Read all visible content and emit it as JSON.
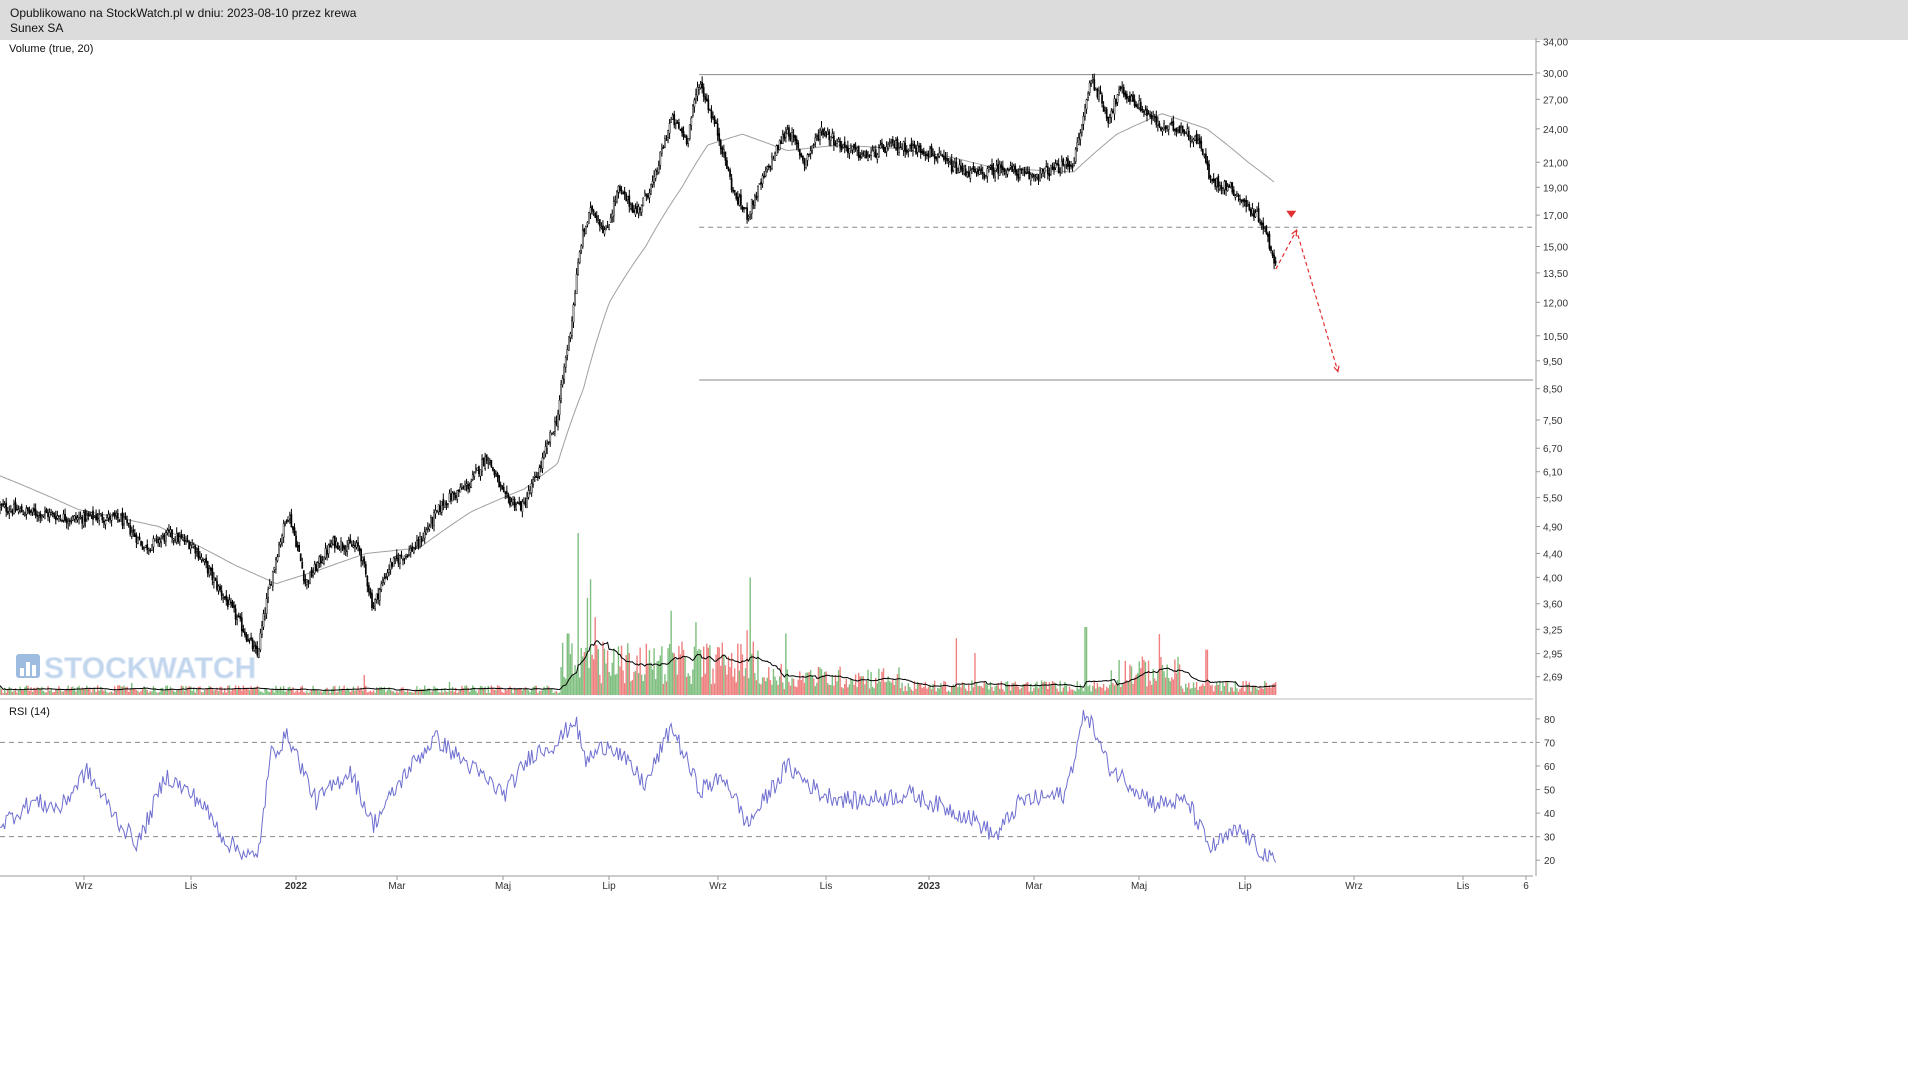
{
  "header": {
    "line1": "Opublikowano na StockWatch.pl w dniu: 2023-08-10 przez krewa",
    "line2": "Sunex SA"
  },
  "watermark": "STOCKWATCH",
  "colors": {
    "candle": "#000000",
    "ma": "#a0a0a0",
    "vol_up": "#7fbf7f",
    "vol_down": "#ef8080",
    "vol_ma": "#000000",
    "rsi": "#6f6fd0",
    "annotation": "#e03030",
    "grid_line": "#999999"
  },
  "chart_data": [
    {
      "type": "candlestick",
      "panel": "price",
      "scale": "log",
      "title": "",
      "legend": "Volume (true, 20)",
      "ylim": [
        2.5,
        34.5
      ],
      "y_ticks": [
        "34,00",
        "30,00",
        "27,00",
        "24,00",
        "21,00",
        "19,00",
        "17,00",
        "15,00",
        "13,50",
        "12,00",
        "10,50",
        "9,50",
        "8,50",
        "7,50",
        "6,70",
        "6,10",
        "5,50",
        "4,90",
        "4,40",
        "4,00",
        "3,60",
        "3,25",
        "2,95",
        "2,69"
      ],
      "x_ticks": [
        "Wrz",
        "Lis",
        "2022",
        "Mar",
        "Maj",
        "Lip",
        "Wrz",
        "Lis",
        "2023",
        "Mar",
        "Maj",
        "Lip",
        "Wrz",
        "Lis",
        "6"
      ],
      "x_range": [
        "2021-08-01",
        "2024-01-06"
      ],
      "close_path": [
        [
          "2021-08-01",
          5.3
        ],
        [
          "2021-08-15",
          5.2
        ],
        [
          "2021-08-29",
          5.15
        ],
        [
          "2021-09-12",
          5.05
        ],
        [
          "2021-09-26",
          5.1
        ],
        [
          "2021-10-10",
          5.05
        ],
        [
          "2021-10-24",
          4.5
        ],
        [
          "2021-11-07",
          4.75
        ],
        [
          "2021-11-21",
          4.55
        ],
        [
          "2021-12-05",
          3.85
        ],
        [
          "2021-12-15",
          3.45
        ],
        [
          "2021-12-28",
          2.92
        ],
        [
          "2022-01-03",
          3.7
        ],
        [
          "2022-01-10",
          4.6
        ],
        [
          "2022-01-15",
          5.2
        ],
        [
          "2022-01-25",
          3.9
        ],
        [
          "2022-02-10",
          4.6
        ],
        [
          "2022-02-25",
          4.5
        ],
        [
          "2022-03-05",
          3.55
        ],
        [
          "2022-03-15",
          4.2
        ],
        [
          "2022-03-31",
          4.55
        ],
        [
          "2022-04-15",
          5.4
        ],
        [
          "2022-04-30",
          5.8
        ],
        [
          "2022-05-10",
          6.5
        ],
        [
          "2022-05-20",
          5.5
        ],
        [
          "2022-05-31",
          5.3
        ],
        [
          "2022-06-10",
          6.2
        ],
        [
          "2022-06-20",
          7.6
        ],
        [
          "2022-06-28",
          11.0
        ],
        [
          "2022-07-04",
          15.5
        ],
        [
          "2022-07-10",
          17.5
        ],
        [
          "2022-07-18",
          15.8
        ],
        [
          "2022-07-25",
          18.8
        ],
        [
          "2022-08-05",
          17.2
        ],
        [
          "2022-08-15",
          19.5
        ],
        [
          "2022-08-25",
          25.0
        ],
        [
          "2022-09-03",
          23.0
        ],
        [
          "2022-09-10",
          29.0
        ],
        [
          "2022-09-20",
          24.0
        ],
        [
          "2022-09-30",
          18.5
        ],
        [
          "2022-10-08",
          17.0
        ],
        [
          "2022-10-20",
          20.5
        ],
        [
          "2022-10-31",
          24.0
        ],
        [
          "2022-11-10",
          21.0
        ],
        [
          "2022-11-20",
          24.0
        ],
        [
          "2022-12-01",
          22.5
        ],
        [
          "2022-12-15",
          21.5
        ],
        [
          "2023-01-01",
          22.5
        ],
        [
          "2023-01-20",
          22.0
        ],
        [
          "2023-02-05",
          20.5
        ],
        [
          "2023-02-20",
          20.0
        ],
        [
          "2023-03-05",
          20.6
        ],
        [
          "2023-03-20",
          19.8
        ],
        [
          "2023-04-05",
          20.5
        ],
        [
          "2023-04-15",
          21.0
        ],
        [
          "2023-04-20",
          24.5
        ],
        [
          "2023-04-25",
          29.5
        ],
        [
          "2023-05-05",
          25.0
        ],
        [
          "2023-05-12",
          28.0
        ],
        [
          "2023-05-25",
          26.0
        ],
        [
          "2023-06-05",
          24.0
        ],
        [
          "2023-06-15",
          24.2
        ],
        [
          "2023-06-28",
          22.5
        ],
        [
          "2023-07-03",
          19.5
        ],
        [
          "2023-07-15",
          19.0
        ],
        [
          "2023-07-25",
          17.5
        ],
        [
          "2023-08-01",
          16.8
        ],
        [
          "2023-08-10",
          14.0
        ]
      ],
      "ma_path": [
        [
          "2021-08-01",
          6.0
        ],
        [
          "2021-09-15",
          5.25
        ],
        [
          "2021-11-01",
          4.9
        ],
        [
          "2021-12-15",
          4.2
        ],
        [
          "2022-01-08",
          3.9
        ],
        [
          "2022-01-31",
          4.1
        ],
        [
          "2022-03-01",
          4.4
        ],
        [
          "2022-04-01",
          4.5
        ],
        [
          "2022-05-01",
          5.2
        ],
        [
          "2022-06-01",
          5.7
        ],
        [
          "2022-06-20",
          6.3
        ],
        [
          "2022-07-05",
          8.5
        ],
        [
          "2022-07-20",
          12.0
        ],
        [
          "2022-08-10",
          15.0
        ],
        [
          "2022-08-31",
          19.0
        ],
        [
          "2022-09-15",
          22.5
        ],
        [
          "2022-10-05",
          23.5
        ],
        [
          "2022-10-31",
          22.0
        ],
        [
          "2022-11-30",
          22.5
        ],
        [
          "2023-01-01",
          22.2
        ],
        [
          "2023-02-01",
          21.5
        ],
        [
          "2023-03-01",
          20.5
        ],
        [
          "2023-04-15",
          20.2
        ],
        [
          "2023-05-10",
          23.5
        ],
        [
          "2023-06-05",
          25.5
        ],
        [
          "2023-07-01",
          24.0
        ],
        [
          "2023-07-25",
          21.0
        ],
        [
          "2023-08-10",
          19.3
        ]
      ],
      "levels": [
        {
          "kind": "solid",
          "value": 29.8,
          "from": "2022-09-10",
          "to": "2024-01-06"
        },
        {
          "kind": "dashed",
          "value": 16.2,
          "from": "2022-09-10",
          "to": "2024-01-06"
        },
        {
          "kind": "solid",
          "value": 8.8,
          "from": "2022-09-10",
          "to": "2024-01-06"
        }
      ],
      "projection": [
        [
          "2023-08-10",
          13.7
        ],
        [
          "2023-08-22",
          16.0
        ],
        [
          "2023-09-15",
          9.1
        ]
      ],
      "marker": {
        "date": "2023-08-19",
        "value": 17.1
      }
    },
    {
      "type": "bar",
      "panel": "volume",
      "title": "",
      "spikes": [
        [
          "2022-07-02",
          100
        ],
        [
          "2022-07-07",
          60
        ],
        [
          "2022-07-12",
          48
        ],
        [
          "2022-06-26",
          38
        ],
        [
          "2022-08-25",
          52
        ],
        [
          "2022-09-08",
          45
        ],
        [
          "2022-10-08",
          40
        ],
        [
          "2022-10-30",
          38
        ],
        [
          "2023-02-06",
          35
        ],
        [
          "2023-04-22",
          42
        ],
        [
          "2023-07-01",
          28
        ]
      ]
    },
    {
      "type": "line",
      "panel": "rsi",
      "legend": "RSI (14)",
      "ylim": [
        15,
        88
      ],
      "y_ticks": [
        80,
        70,
        60,
        50,
        40,
        30,
        20
      ],
      "levels": [
        70,
        30
      ],
      "values_path": [
        [
          "2021-08-01",
          35
        ],
        [
          "2021-08-20",
          45
        ],
        [
          "2021-09-05",
          42
        ],
        [
          "2021-09-20",
          58
        ],
        [
          "2021-10-10",
          35
        ],
        [
          "2021-10-20",
          27
        ],
        [
          "2021-11-05",
          56
        ],
        [
          "2021-11-25",
          45
        ],
        [
          "2021-12-10",
          28
        ],
        [
          "2021-12-28",
          20
        ],
        [
          "2022-01-05",
          65
        ],
        [
          "2022-01-15",
          73
        ],
        [
          "2022-01-31",
          45
        ],
        [
          "2022-02-20",
          58
        ],
        [
          "2022-03-05",
          35
        ],
        [
          "2022-03-25",
          58
        ],
        [
          "2022-04-10",
          72
        ],
        [
          "2022-04-30",
          60
        ],
        [
          "2022-05-20",
          48
        ],
        [
          "2022-06-05",
          65
        ],
        [
          "2022-06-20",
          70
        ],
        [
          "2022-06-30",
          80
        ],
        [
          "2022-07-06",
          62
        ],
        [
          "2022-07-20",
          70
        ],
        [
          "2022-08-10",
          52
        ],
        [
          "2022-08-25",
          77
        ],
        [
          "2022-09-10",
          50
        ],
        [
          "2022-09-25",
          55
        ],
        [
          "2022-10-08",
          35
        ],
        [
          "2022-10-31",
          60
        ],
        [
          "2022-11-20",
          48
        ],
        [
          "2022-12-10",
          45
        ],
        [
          "2023-01-10",
          48
        ],
        [
          "2023-02-15",
          38
        ],
        [
          "2023-03-01",
          30
        ],
        [
          "2023-03-15",
          45
        ],
        [
          "2023-04-10",
          48
        ],
        [
          "2023-04-22",
          84
        ],
        [
          "2023-05-05",
          60
        ],
        [
          "2023-06-01",
          44
        ],
        [
          "2023-06-20",
          45
        ],
        [
          "2023-07-03",
          25
        ],
        [
          "2023-07-20",
          33
        ],
        [
          "2023-08-10",
          18
        ]
      ]
    }
  ]
}
